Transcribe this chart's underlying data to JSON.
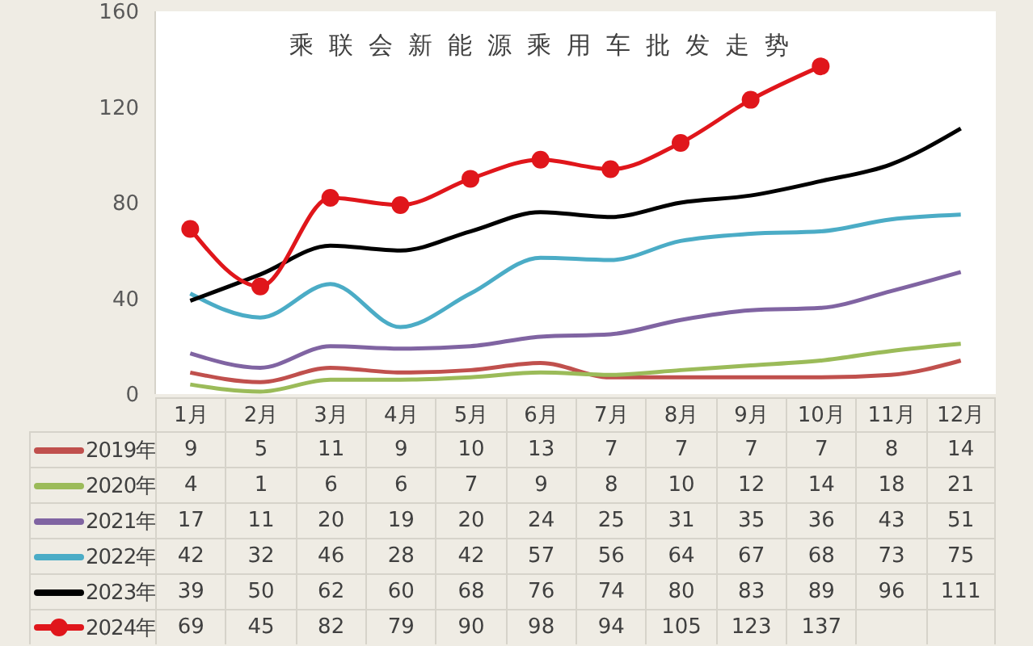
{
  "chart_data": {
    "type": "line",
    "title": "乘联会新能源乘用车批发走势",
    "categories": [
      "1月",
      "2月",
      "3月",
      "4月",
      "5月",
      "6月",
      "7月",
      "8月",
      "9月",
      "10月",
      "11月",
      "12月"
    ],
    "series": [
      {
        "name": "2019年",
        "color": "#c0504d",
        "values": [
          9,
          5,
          11,
          9,
          10,
          13,
          7,
          7,
          7,
          7,
          8,
          14
        ]
      },
      {
        "name": "2020年",
        "color": "#9bbb59",
        "values": [
          4,
          1,
          6,
          6,
          7,
          9,
          8,
          10,
          12,
          14,
          18,
          21
        ]
      },
      {
        "name": "2021年",
        "color": "#8064a2",
        "values": [
          17,
          11,
          20,
          19,
          20,
          24,
          25,
          31,
          35,
          36,
          43,
          51
        ]
      },
      {
        "name": "2022年",
        "color": "#4bacc6",
        "values": [
          42,
          32,
          46,
          28,
          42,
          57,
          56,
          64,
          67,
          68,
          73,
          75
        ]
      },
      {
        "name": "2023年",
        "color": "#000000",
        "values": [
          39,
          50,
          62,
          60,
          68,
          76,
          74,
          80,
          83,
          89,
          96,
          111
        ]
      },
      {
        "name": "2024年",
        "color": "#e0161b",
        "marker": "circle",
        "values": [
          69,
          45,
          82,
          79,
          90,
          98,
          94,
          105,
          123,
          137,
          null,
          null
        ]
      }
    ],
    "ylim": [
      0,
      160
    ],
    "yticks": [
      0,
      40,
      80,
      120,
      160
    ],
    "legend": "bottom",
    "data_labels": true,
    "line_style": "solid"
  }
}
